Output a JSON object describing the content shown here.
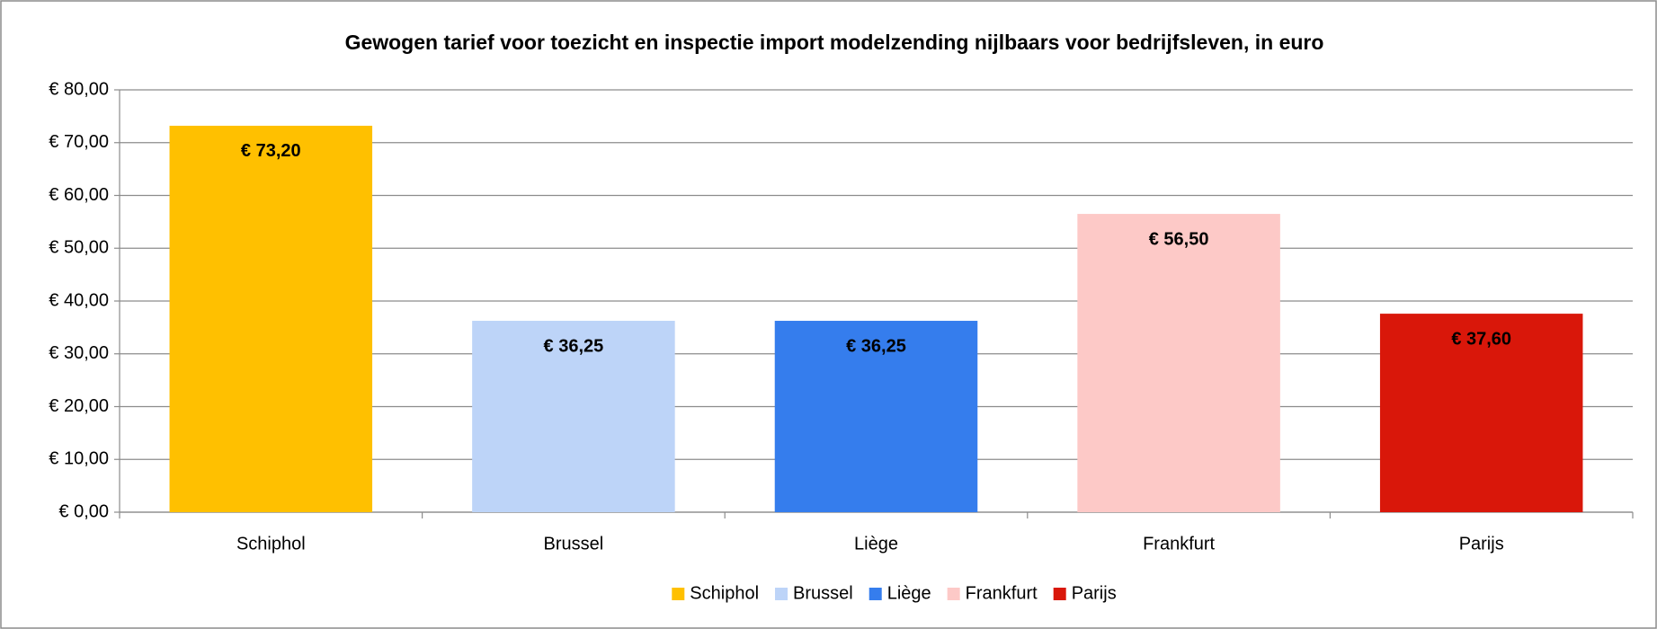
{
  "chart_data": {
    "type": "bar",
    "title": "Gewogen tarief voor toezicht en inspectie import modelzending nijlbaars  voor bedrijfsleven, in euro",
    "categories": [
      "Schiphol",
      "Brussel",
      "Liège",
      "Frankfurt",
      "Parijs"
    ],
    "values": [
      73.2,
      36.25,
      36.25,
      56.5,
      37.6
    ],
    "value_labels": [
      "€ 73,20",
      "€ 36,25",
      "€ 36,25",
      "€ 56,50",
      "€ 37,60"
    ],
    "colors": [
      "#ffc000",
      "#bdd4f8",
      "#357ded",
      "#fdc9c7",
      "#d9170a"
    ],
    "label_colors": [
      "#000000",
      "#000000",
      "#ffffff",
      "#000000",
      "#ffffff"
    ],
    "ylim": [
      0,
      80
    ],
    "yticks": [
      {
        "value": 0,
        "label": "€ 0,00"
      },
      {
        "value": 10,
        "label": "€ 10,00"
      },
      {
        "value": 20,
        "label": "€ 20,00"
      },
      {
        "value": 30,
        "label": "€ 30,00"
      },
      {
        "value": 40,
        "label": "€ 40,00"
      },
      {
        "value": 50,
        "label": "€ 50,00"
      },
      {
        "value": 60,
        "label": "€ 60,00"
      },
      {
        "value": 70,
        "label": "€ 70,00"
      },
      {
        "value": 80,
        "label": "€ 80,00"
      }
    ],
    "grid": true,
    "legend": "bottom"
  }
}
